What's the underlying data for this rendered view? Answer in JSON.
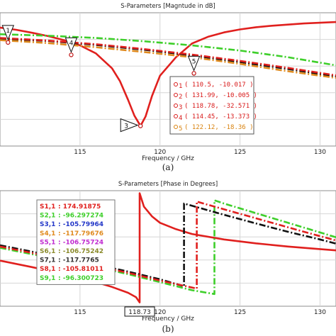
{
  "chart_data": [
    {
      "type": "line",
      "title": "S-Parameters [Magntude in dB]",
      "xlabel": "Frequency / GHz",
      "caption": "(a)",
      "xlim": [
        110,
        131
      ],
      "ylim": [
        -38,
        -2
      ],
      "x_ticks": [
        "115",
        "120",
        "125",
        "130"
      ],
      "grid": true,
      "series": [
        {
          "color": "#e0201e",
          "dash": "solid",
          "x": [
            110,
            111,
            112,
            113,
            114,
            115,
            116,
            117,
            117.5,
            118,
            118.4,
            118.78,
            119.1,
            119.5,
            120,
            121,
            122,
            123,
            124,
            125,
            126,
            127,
            128,
            129,
            130,
            131
          ],
          "y": [
            -6.0,
            -6.6,
            -7.4,
            -8.3,
            -9.4,
            -10.8,
            -13.0,
            -17.0,
            -20.5,
            -25.5,
            -29.8,
            -32.571,
            -30.0,
            -24.5,
            -19.0,
            -14.0,
            -10.3,
            -8.5,
            -7.3,
            -6.5,
            -5.9,
            -5.5,
            -5.2,
            -4.9,
            -4.7,
            -4.5
          ]
        },
        {
          "color": "#3ecf2a",
          "dash": "dashdot",
          "x": [
            110,
            113,
            116,
            119,
            122,
            125,
            128,
            131
          ],
          "y": [
            -7.8,
            -8.2,
            -8.8,
            -9.7,
            -10.8,
            -12.2,
            -14.0,
            -16.2
          ]
        },
        {
          "color": "#111111",
          "dash": "dashdot",
          "x": [
            110,
            113,
            116,
            119,
            122,
            125,
            128,
            131
          ],
          "y": [
            -9.0,
            -9.6,
            -10.7,
            -12.0,
            -13.5,
            -15.3,
            -17.2,
            -19.2
          ]
        },
        {
          "color": "#e0201e",
          "dash": "dashdot",
          "x": [
            110,
            113,
            116,
            119,
            122,
            125,
            128,
            131
          ],
          "y": [
            -8.8,
            -9.5,
            -10.5,
            -11.8,
            -13.3,
            -15.0,
            -16.9,
            -18.9
          ]
        },
        {
          "color": "#e08a1e",
          "dash": "dashdot",
          "x": [
            110,
            113,
            116,
            119,
            122,
            125,
            128,
            131
          ],
          "y": [
            -9.4,
            -10.2,
            -11.3,
            -12.6,
            -14.0,
            -15.8,
            -17.8,
            -19.6
          ]
        }
      ],
      "markers": [
        {
          "label": "1",
          "x": 110.5,
          "y": -10.017
        },
        {
          "label": "2",
          "x": 131.99,
          "y": -10.005
        },
        {
          "label": "3",
          "x": 118.78,
          "y": -32.571
        },
        {
          "label": "4",
          "x": 114.45,
          "y": -13.373
        },
        {
          "label": "5",
          "x": 122.12,
          "y": -18.36
        }
      ],
      "legend": {
        "placement": "right",
        "entries": [
          {
            "sym": "1",
            "text": "( 110.5, -10.017 )",
            "color": "#d81a1a"
          },
          {
            "sym": "2",
            "text": "( 131.99, -10.005 )",
            "color": "#d81a1a"
          },
          {
            "sym": "3",
            "text": "( 118.78, -32.571 )",
            "color": "#d81a1a"
          },
          {
            "sym": "4",
            "text": "( 114.45, -13.373 )",
            "color": "#d81a1a"
          },
          {
            "sym": "5",
            "text": "( 122.12, -18.36 )",
            "color": "#d8820e"
          }
        ]
      }
    },
    {
      "type": "line",
      "title": "S-Parameters [Phase in Degrees]",
      "xlabel": "Frequency / GHz",
      "caption": "(b)",
      "xlim": [
        110,
        131
      ],
      "ylim": [
        -180,
        180
      ],
      "x_ticks": [
        "115",
        "120",
        "125",
        "130"
      ],
      "x_marker": {
        "label": "118.73",
        "x": 118.73
      },
      "grid": true,
      "series": [
        {
          "color": "#e0201e",
          "dash": "solid",
          "x": [
            110,
            112,
            114,
            116,
            117,
            118,
            118.5,
            118.73,
            118.73,
            119,
            119.5,
            120,
            121,
            122,
            124,
            126,
            128,
            130,
            131
          ],
          "y": [
            -38,
            -58,
            -80,
            -105,
            -120,
            -138,
            -152,
            -168,
            172,
            130,
            100,
            80,
            60,
            45,
            28,
            16,
            6,
            -2,
            -6
          ]
        },
        {
          "color": "#3ecf2a",
          "dash": "dashdot",
          "x": [
            110,
            112,
            114,
            116,
            118,
            120,
            122,
            123.4,
            123.4,
            124,
            126,
            128,
            130,
            131
          ],
          "y": [
            2,
            -18,
            -38,
            -58,
            -80,
            -105,
            -130,
            -142,
            150,
            140,
            110,
            80,
            50,
            35
          ]
        },
        {
          "color": "#111111",
          "dash": "dashdot",
          "x": [
            110,
            112,
            114,
            116,
            118,
            120,
            121.5,
            121.5,
            122,
            124,
            126,
            128,
            130,
            131
          ],
          "y": [
            10,
            -10,
            -30,
            -50,
            -72,
            -96,
            -118,
            140,
            133,
            105,
            78,
            52,
            28,
            15
          ]
        },
        {
          "color": "#e0201e",
          "dash": "dashdot",
          "x": [
            110,
            112,
            114,
            116,
            118,
            120,
            122.3,
            122.3,
            123,
            125,
            127,
            129,
            131
          ],
          "y": [
            6,
            -14,
            -34,
            -54,
            -76,
            -100,
            -125,
            146,
            136,
            108,
            80,
            52,
            25
          ]
        }
      ],
      "legend": {
        "placement": "top-left",
        "entries": [
          {
            "sym": "S1,1",
            "text": ": 174.91875",
            "color": "#e0201e"
          },
          {
            "sym": "S2,1",
            "text": ": -96.297274",
            "color": "#3ecf2a"
          },
          {
            "sym": "S3,1",
            "text": ": -105.79964",
            "color": "#2236c8"
          },
          {
            "sym": "S4,1",
            "text": ": -117.79676",
            "color": "#e08a1e"
          },
          {
            "sym": "S5,1",
            "text": ": -106.75724",
            "color": "#c02ad0"
          },
          {
            "sym": "S6,1",
            "text": ": -106.75242",
            "color": "#8a8a2a"
          },
          {
            "sym": "S7,1",
            "text": ": -117.7765",
            "color": "#333333"
          },
          {
            "sym": "S8,1",
            "text": ": -105.81011",
            "color": "#e0201e"
          },
          {
            "sym": "S9,1",
            "text": ": -96.300723",
            "color": "#3ecf2a"
          }
        ]
      }
    }
  ]
}
